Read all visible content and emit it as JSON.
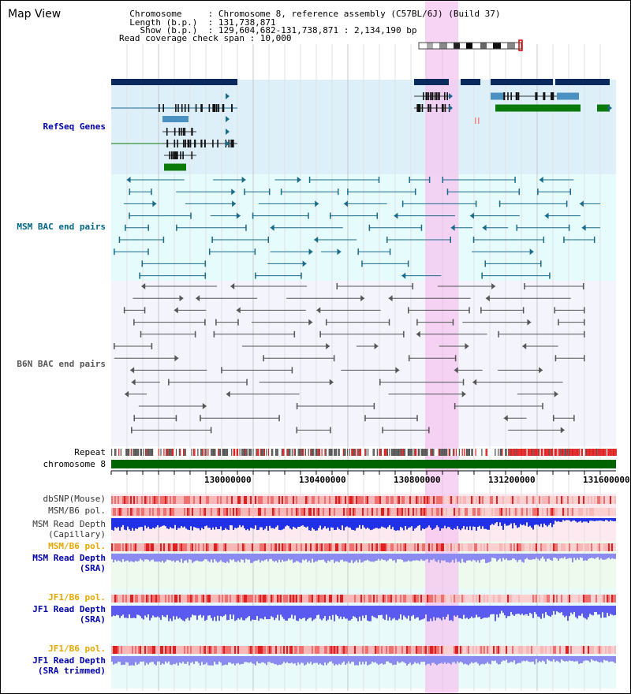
{
  "page": {
    "title": "Map View"
  },
  "header": {
    "lines": [
      "  Chromosome     : Chromosome 8, reference assembly (C57BL/6J) (Build 37)",
      "  Length (b.p.)  : 131,738,871",
      "    Show (b.p.)  : 129,604,682-131,738,871 : 2,134,190 bp",
      "Read coverage check span : 10,000"
    ]
  },
  "tracks": {
    "refseq": {
      "label": "RefSeq Genes",
      "color": "#0000aa"
    },
    "msm_bac": {
      "label": "MSM BAC end pairs",
      "color": "#006688"
    },
    "b6n_bac": {
      "label": "B6N BAC end pairs",
      "color": "#333333"
    },
    "repeat": {
      "label": "Repeat",
      "color": "#000000"
    },
    "chromosome": {
      "label": "chromosome 8",
      "color": "#000000"
    },
    "dbsnp": {
      "label": "dbSNP(Mouse)",
      "color": "#333333"
    },
    "msm_b6_pol": {
      "label": "MSM/B6 pol.",
      "color": "#333333"
    },
    "msm_cap_depth": {
      "label1": "MSM Read Depth",
      "label2": "(Capillary)",
      "color": "#333333"
    },
    "msm_b6_pol_sra": {
      "label": "MSM/B6 pol.",
      "color": "#e6a800"
    },
    "msm_sra_depth": {
      "label1": "MSM Read Depth",
      "label2": "(SRA)",
      "color": "#0000aa"
    },
    "jf1_b6_pol": {
      "label": "JF1/B6 pol.",
      "color": "#e6a800"
    },
    "jf1_depth": {
      "label1": "JF1 Read Depth",
      "label2": "(SRA)",
      "color": "#0000aa"
    },
    "jf1_b6_pol_t": {
      "label": "JF1/B6 pol.",
      "color": "#e6a800"
    },
    "jf1_depth_t": {
      "label1": "JF1 Read Depth",
      "label2": "(SRA trimmed)",
      "color": "#0000aa"
    }
  },
  "axis": {
    "ticks": [
      "130000000",
      "130400000",
      "130800000",
      "131200000",
      "131600000"
    ]
  },
  "colors": {
    "highlight": "#f5c6f0",
    "gene_navy": "#0a2a5e",
    "gene_green": "#0a7a0a",
    "gene_blue": "#4a90c0",
    "bac_teal": "#1a6a8a",
    "snp_red": "#e02020"
  }
}
